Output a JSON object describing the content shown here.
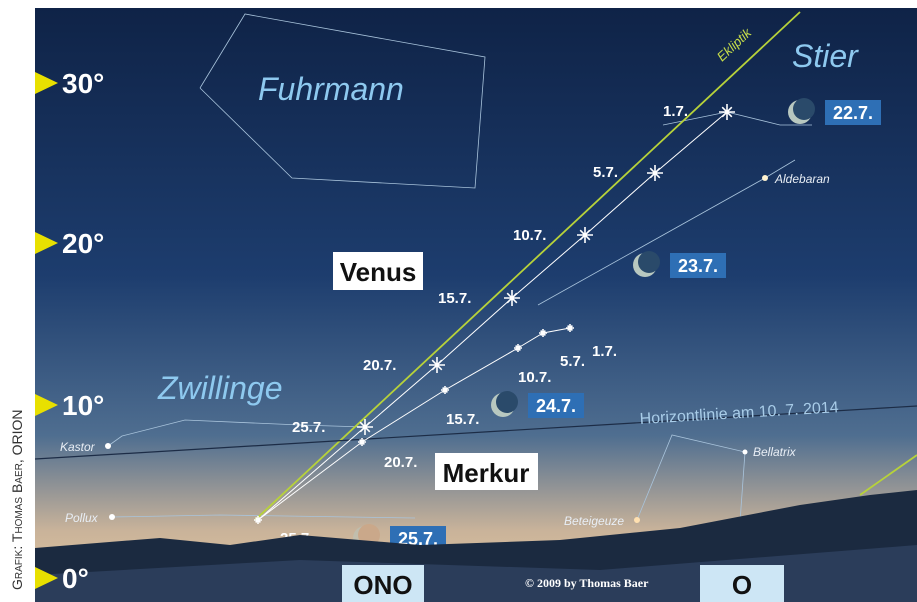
{
  "credit_vertical": "Grafik: Thomas Baer, ORION",
  "altitude_labels": [
    "30°",
    "20°",
    "10°",
    "0°"
  ],
  "constellations": [
    "Fuhrmann",
    "Stier",
    "Zwillinge"
  ],
  "stars": [
    "Aldebaran",
    "Kastor",
    "Pollux",
    "Beteigeuze",
    "Bellatrix"
  ],
  "ecliptic": "Ekliptik",
  "horizon": "Horizontlinie am 10. 7. 2014",
  "planets": [
    {
      "name": "Venus",
      "dates": [
        "1.7.",
        "5.7.",
        "10.7.",
        "15.7.",
        "20.7.",
        "25.7."
      ]
    },
    {
      "name": "Merkur",
      "dates": [
        "1.7.",
        "5.7.",
        "10.7.",
        "15.7.",
        "20.7.",
        "25.7."
      ]
    }
  ],
  "moon": [
    "22.7.",
    "23.7.",
    "24.7.",
    "25.7."
  ],
  "directions": [
    "ONO",
    "O"
  ],
  "copyright": "© 2009 by Thomas Baer"
}
